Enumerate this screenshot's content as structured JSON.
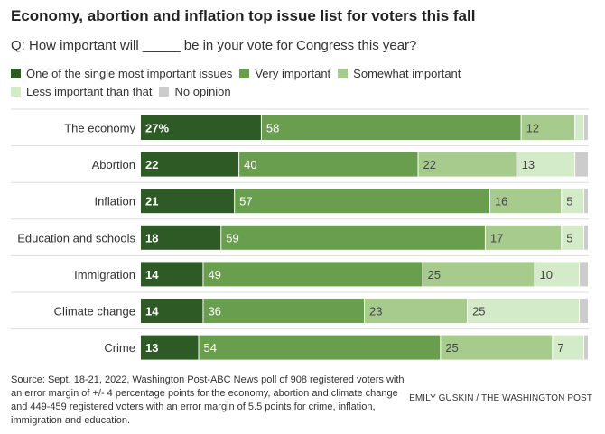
{
  "title": "Economy, abortion and inflation top issue list for voters this fall",
  "subtitle": "Q: How important will _____ be in your vote for Congress this year?",
  "source": "Source: Sept. 18-21, 2022, Washington Post-ABC News poll of 908 registered voters with an error margin of +/- 4 percentage points for the economy, abortion and climate change and 449-459 registered voters with an error margin of 5.5 points for crime, inflation, immigration and education.",
  "credit": "EMILY GUSKIN / THE WASHINGTON POST",
  "chart_data": {
    "type": "bar",
    "orientation": "horizontal",
    "stacked": true,
    "xlim": [
      0,
      100
    ],
    "categories": [
      "The economy",
      "Abortion",
      "Inflation",
      "Education and schools",
      "Immigration",
      "Climate change",
      "Crime"
    ],
    "series": [
      {
        "name": "One of the single most important issues",
        "color": "#2e5a26",
        "values": [
          27,
          22,
          21,
          18,
          14,
          14,
          13
        ],
        "labels": [
          "27%",
          "22",
          "21",
          "18",
          "14",
          "14",
          "13"
        ]
      },
      {
        "name": "Very important",
        "color": "#6a9e4f",
        "values": [
          58,
          40,
          57,
          59,
          49,
          36,
          54
        ],
        "labels": [
          "58",
          "40",
          "57",
          "59",
          "49",
          "36",
          "54"
        ]
      },
      {
        "name": "Somewhat important",
        "color": "#a6cb8d",
        "values": [
          12,
          22,
          16,
          17,
          25,
          23,
          25
        ],
        "labels": [
          "12",
          "22",
          "16",
          "17",
          "25",
          "23",
          "25"
        ]
      },
      {
        "name": "Less important than that",
        "color": "#d3ebc8",
        "values": [
          2,
          13,
          5,
          5,
          10,
          25,
          7
        ],
        "labels": [
          "",
          "13",
          "5",
          "5",
          "10",
          "25",
          "7"
        ]
      },
      {
        "name": "No opinion",
        "color": "#cccccc",
        "values": [
          1,
          3,
          1,
          1,
          2,
          2,
          1
        ],
        "labels": [
          "",
          "",
          "",
          "",
          "",
          "",
          ""
        ]
      }
    ],
    "label_colors": [
      "#ffffff",
      "#ffffff",
      "#444444",
      "#444444",
      "#444444"
    ],
    "legend_position": "top",
    "grid": false
  }
}
